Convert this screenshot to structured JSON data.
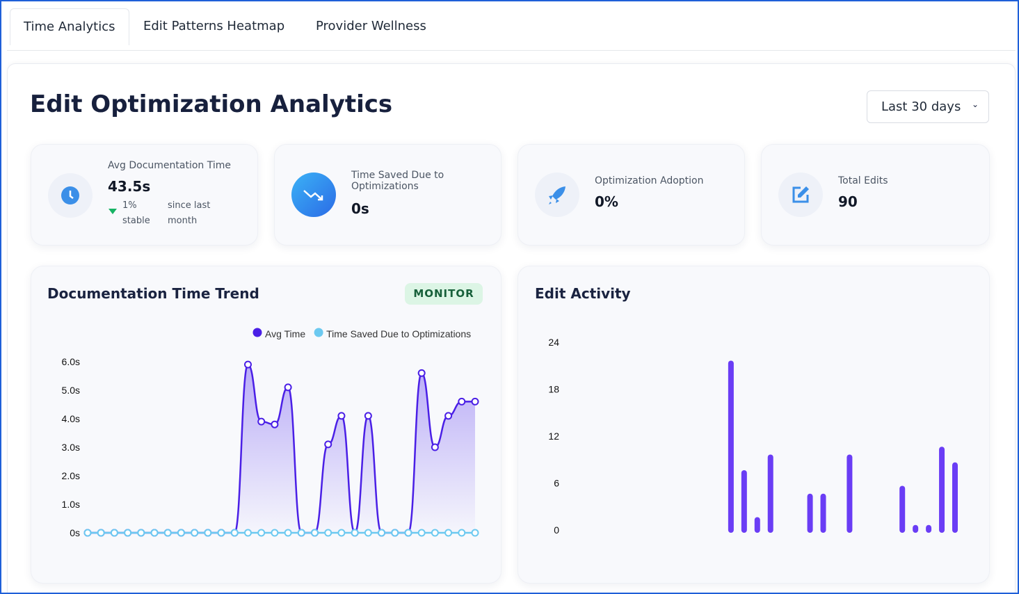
{
  "tabs": [
    "Time Analytics",
    "Edit Patterns Heatmap",
    "Provider Wellness"
  ],
  "header": {
    "title": "Edit Optimization Analytics",
    "range": "Last 30 days"
  },
  "cards": [
    {
      "label": "Avg Documentation Time",
      "value": "43.5s",
      "change": "1%",
      "status": "stable",
      "period": "since last month"
    },
    {
      "label": "Time Saved Due to Optimizations",
      "value": "0s"
    },
    {
      "label": "Optimization Adoption",
      "value": "0%"
    },
    {
      "label": "Total Edits",
      "value": "90"
    }
  ],
  "chart_data": [
    {
      "type": "line",
      "title": "Documentation Time Trend",
      "badge": "MONITOR",
      "ylim": [
        0,
        6
      ],
      "yticks": [
        {
          "value": 0,
          "label": "0s"
        },
        {
          "value": 1,
          "label": "1.0s"
        },
        {
          "value": 2,
          "label": "2.0s"
        },
        {
          "value": 3,
          "label": "3.0s"
        },
        {
          "value": 4,
          "label": "4.0s"
        },
        {
          "value": 5,
          "label": "5.0s"
        },
        {
          "value": 6,
          "label": "6.0s"
        }
      ],
      "series": [
        {
          "name": "Avg Time",
          "color": "#4a1fe6",
          "values": [
            0,
            0,
            0,
            0,
            0,
            0,
            0,
            0,
            0,
            0,
            0,
            0,
            5.9,
            3.9,
            3.8,
            5.1,
            0,
            0,
            3.1,
            4.1,
            0,
            4.1,
            0,
            0,
            0,
            5.6,
            3.0,
            4.1,
            4.6,
            4.6
          ]
        },
        {
          "name": "Time Saved Due to Optimizations",
          "color": "#6cc9f0",
          "values": [
            0,
            0,
            0,
            0,
            0,
            0,
            0,
            0,
            0,
            0,
            0,
            0,
            0,
            0,
            0,
            0,
            0,
            0,
            0,
            0,
            0,
            0,
            0,
            0,
            0,
            0,
            0,
            0,
            0,
            0
          ]
        }
      ]
    },
    {
      "type": "bar",
      "title": "Edit Activity",
      "color": "#6a3df5",
      "ylim": [
        0,
        24
      ],
      "yticks": [
        0,
        6,
        12,
        18,
        24
      ],
      "values": [
        0,
        0,
        0,
        0,
        0,
        0,
        0,
        0,
        0,
        0,
        0,
        0,
        22,
        8,
        2,
        10,
        0,
        0,
        5,
        5,
        0,
        10,
        0,
        0,
        0,
        6,
        1,
        1,
        11,
        9
      ]
    }
  ]
}
